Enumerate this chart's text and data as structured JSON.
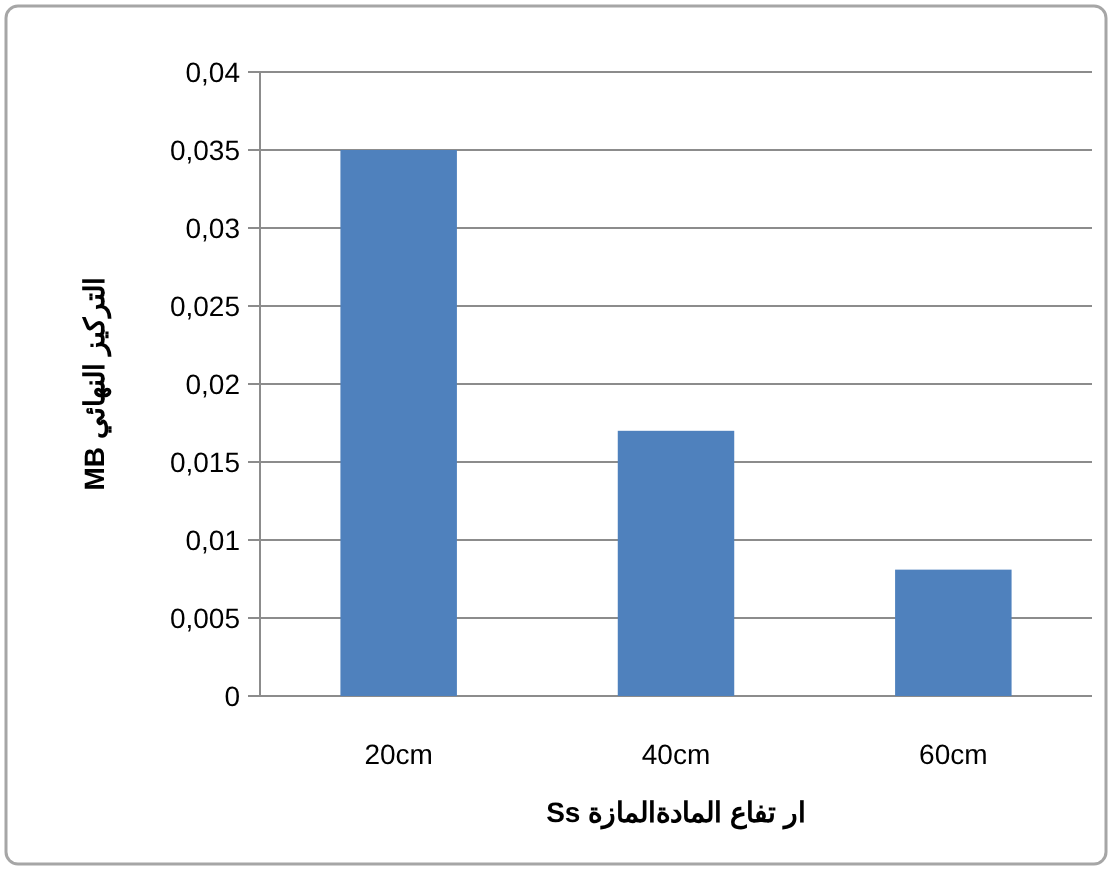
{
  "chart_data": {
    "type": "bar",
    "xlabel": "ار تفاع المادةالمازة Ss",
    "ylabel": "التركيز النهائي MB",
    "categories": [
      "20cm",
      "40cm",
      "60cm"
    ],
    "values": [
      0.035,
      0.017,
      0.0081
    ],
    "color": "#4f81bd",
    "ylim": [
      0,
      0.04
    ],
    "yticks": [
      {
        "value": 0,
        "label": "0"
      },
      {
        "value": 0.005,
        "label": "0,005"
      },
      {
        "value": 0.01,
        "label": "0,01"
      },
      {
        "value": 0.015,
        "label": "0,015"
      },
      {
        "value": 0.02,
        "label": "0,02"
      },
      {
        "value": 0.025,
        "label": "0,025"
      },
      {
        "value": 0.03,
        "label": "0,03"
      },
      {
        "value": 0.035,
        "label": "0,035"
      },
      {
        "value": 0.04,
        "label": "0,04"
      }
    ],
    "grid": "y"
  }
}
